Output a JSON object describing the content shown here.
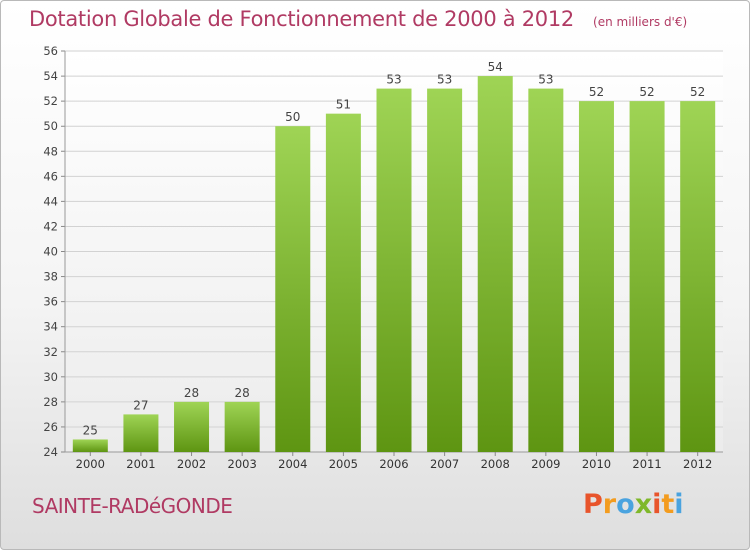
{
  "title": "Dotation Globale de Fonctionnement de 2000 à 2012",
  "unit": "(en milliers d'€)",
  "commune": "SAINTE-RADéGONDE",
  "logo": {
    "letters": [
      "P",
      "r",
      "o",
      "x",
      "i",
      "t",
      "i"
    ],
    "colors": [
      "#e8542b",
      "#f39c1f",
      "#4aa3df",
      "#7fb82a",
      "#e8542b",
      "#f39c1f",
      "#4aa3df"
    ]
  },
  "colors": {
    "bar_top": "#9fd455",
    "bar_bottom": "#5e9512",
    "title": "#b03a63"
  },
  "chart_data": {
    "type": "bar",
    "categories": [
      "2000",
      "2001",
      "2002",
      "2003",
      "2004",
      "2005",
      "2006",
      "2007",
      "2008",
      "2009",
      "2010",
      "2011",
      "2012"
    ],
    "values": [
      25,
      27,
      28,
      28,
      50,
      51,
      53,
      53,
      54,
      53,
      52,
      52,
      52
    ],
    "ylim": [
      24,
      56
    ],
    "yticks": [
      24,
      26,
      28,
      30,
      32,
      34,
      36,
      38,
      40,
      42,
      44,
      46,
      48,
      50,
      52,
      54,
      56
    ],
    "grid": true
  }
}
